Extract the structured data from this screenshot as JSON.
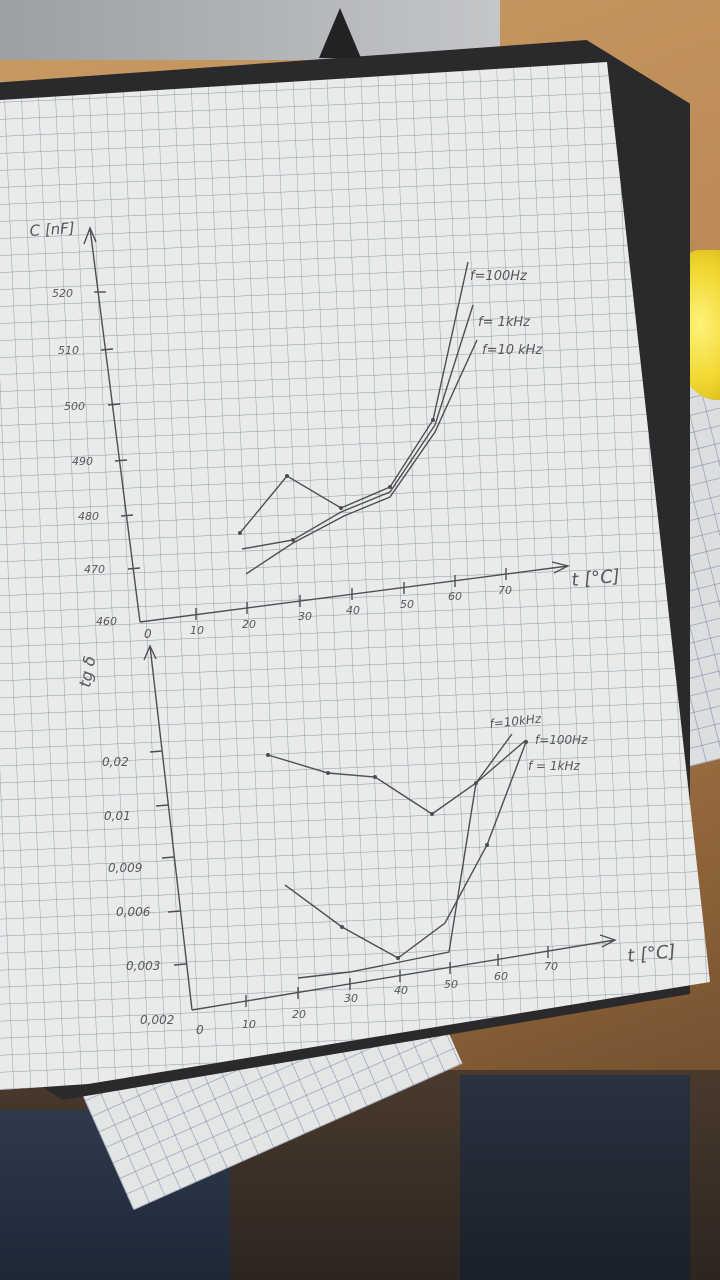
{
  "image": {
    "description_tags": [
      "graph-paper",
      "hand-drawn-plot",
      "folder",
      "desk"
    ]
  },
  "top_plot": {
    "y_axis_label": "C [nF]",
    "x_axis_label": "t [°C]",
    "y_ticks": [
      "460",
      "470",
      "480",
      "490",
      "500",
      "510",
      "520"
    ],
    "x_ticks": [
      "0",
      "10",
      "20",
      "30",
      "40",
      "50",
      "60",
      "70"
    ],
    "legend": [
      "f=100Hz",
      "f= 1kHz",
      "f=10 kHz"
    ]
  },
  "bottom_plot": {
    "y_axis_label": "tg δ",
    "x_axis_label": "t [°C]",
    "y_ticks": [
      "0,002",
      "0,003",
      "0,006",
      "0,009",
      "0,01",
      "0,02"
    ],
    "x_ticks": [
      "0",
      "10",
      "20",
      "30",
      "40",
      "50",
      "60",
      "70"
    ],
    "legend": [
      "f=10kHz",
      "f=100Hz",
      "f = 1kHz"
    ]
  },
  "colors": {
    "paper": "#e9eaea",
    "grid": "#8c95aa",
    "ink": "#4e4f52"
  }
}
